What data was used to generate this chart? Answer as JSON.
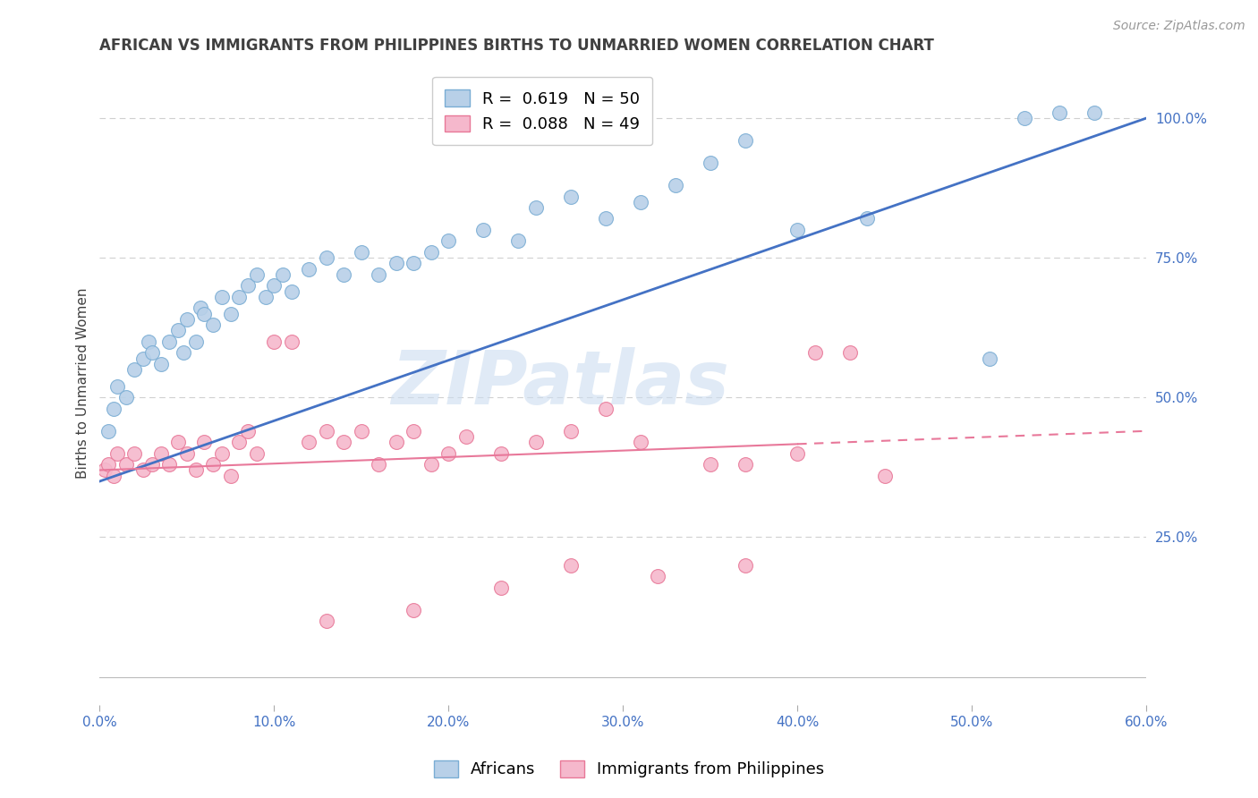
{
  "title": "AFRICAN VS IMMIGRANTS FROM PHILIPPINES BIRTHS TO UNMARRIED WOMEN CORRELATION CHART",
  "source": "Source: ZipAtlas.com",
  "ylabel": "Births to Unmarried Women",
  "xlabel_ticks": [
    "0.0%",
    "10.0%",
    "20.0%",
    "30.0%",
    "40.0%",
    "50.0%",
    "60.0%"
  ],
  "xlabel_vals": [
    0,
    10,
    20,
    30,
    40,
    50,
    60
  ],
  "ylabel_ticks": [
    "25.0%",
    "50.0%",
    "75.0%",
    "100.0%"
  ],
  "ylabel_vals": [
    25,
    50,
    75,
    100
  ],
  "xlim": [
    0,
    60
  ],
  "ylim": [
    -5,
    110
  ],
  "ylim_display": [
    0,
    100
  ],
  "legend_entries": [
    {
      "label": "R =  0.619   N = 50"
    },
    {
      "label": "R =  0.088   N = 49"
    }
  ],
  "watermark": "ZIPatlas",
  "blue_color": "#b8d0e8",
  "blue_edge": "#7aadd4",
  "pink_color": "#f5b8cc",
  "pink_edge": "#e87898",
  "blue_line_color": "#4472c4",
  "pink_line_color": "#e8789a",
  "africans_x": [
    0.5,
    0.8,
    1.0,
    1.5,
    2.0,
    2.5,
    2.8,
    3.0,
    3.5,
    4.0,
    4.5,
    4.8,
    5.0,
    5.5,
    5.8,
    6.0,
    6.5,
    7.0,
    7.5,
    8.0,
    8.5,
    9.0,
    9.5,
    10.0,
    10.5,
    11.0,
    12.0,
    13.0,
    14.0,
    15.0,
    16.0,
    17.0,
    18.0,
    19.0,
    20.0,
    22.0,
    24.0,
    25.0,
    27.0,
    29.0,
    31.0,
    33.0,
    35.0,
    37.0,
    40.0,
    44.0,
    51.0,
    53.0,
    55.0,
    57.0
  ],
  "africans_y": [
    44,
    48,
    52,
    50,
    55,
    57,
    60,
    58,
    56,
    60,
    62,
    58,
    64,
    60,
    66,
    65,
    63,
    68,
    65,
    68,
    70,
    72,
    68,
    70,
    72,
    69,
    73,
    75,
    72,
    76,
    72,
    74,
    74,
    76,
    78,
    80,
    78,
    84,
    86,
    82,
    85,
    88,
    92,
    96,
    80,
    82,
    57,
    100,
    101,
    101
  ],
  "philippines_x": [
    0.3,
    0.5,
    0.8,
    1.0,
    1.5,
    2.0,
    2.5,
    3.0,
    3.5,
    4.0,
    4.5,
    5.0,
    5.5,
    6.0,
    6.5,
    7.0,
    7.5,
    8.0,
    8.5,
    9.0,
    10.0,
    11.0,
    12.0,
    13.0,
    14.0,
    15.0,
    16.0,
    17.0,
    18.0,
    19.0,
    20.0,
    21.0,
    23.0,
    25.0,
    27.0,
    29.0,
    31.0,
    35.0,
    37.0,
    40.0,
    41.0,
    43.0,
    45.0,
    37.0,
    32.0,
    27.0,
    23.0,
    18.0,
    13.0
  ],
  "philippines_y": [
    37,
    38,
    36,
    40,
    38,
    40,
    37,
    38,
    40,
    38,
    42,
    40,
    37,
    42,
    38,
    40,
    36,
    42,
    44,
    40,
    60,
    60,
    42,
    44,
    42,
    44,
    38,
    42,
    44,
    38,
    40,
    43,
    40,
    42,
    44,
    48,
    42,
    38,
    38,
    40,
    58,
    58,
    36,
    20,
    18,
    20,
    16,
    12,
    10
  ],
  "blue_line": {
    "x0": 0,
    "y0": 35,
    "x1": 60,
    "y1": 100
  },
  "pink_line": {
    "x0": 0,
    "y0": 37,
    "x1": 60,
    "y1": 44
  },
  "title_fontsize": 12,
  "source_fontsize": 10,
  "ylabel_fontsize": 11,
  "tick_fontsize": 11,
  "legend_fontsize": 13,
  "marker_size": 130,
  "watermark_fontsize": 60,
  "background_color": "#ffffff",
  "grid_color": "#d0d0d0",
  "tick_color": "#4472c4",
  "title_color": "#404040"
}
